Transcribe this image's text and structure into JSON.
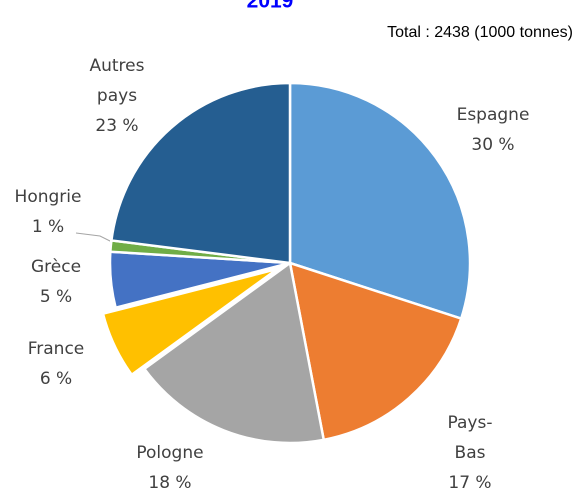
{
  "chart_data": {
    "type": "pie",
    "title": "2019",
    "subtitle": "Total : 2438 (1000 tonnes)",
    "categories": [
      "Espagne",
      "Pays-Bas",
      "Pologne",
      "France",
      "Grèce",
      "Hongrie",
      "Autres pays"
    ],
    "values": [
      30,
      17,
      18,
      6,
      5,
      1,
      23
    ],
    "value_labels": [
      "30 %",
      "17 %",
      "18 %",
      "6 %",
      "5 %",
      "1 %",
      "23 %"
    ],
    "colors": [
      "#5b9bd5",
      "#ed7d31",
      "#a5a5a5",
      "#ffc000",
      "#4472c4",
      "#70ad47",
      "#255e91"
    ],
    "exploded": "France"
  }
}
